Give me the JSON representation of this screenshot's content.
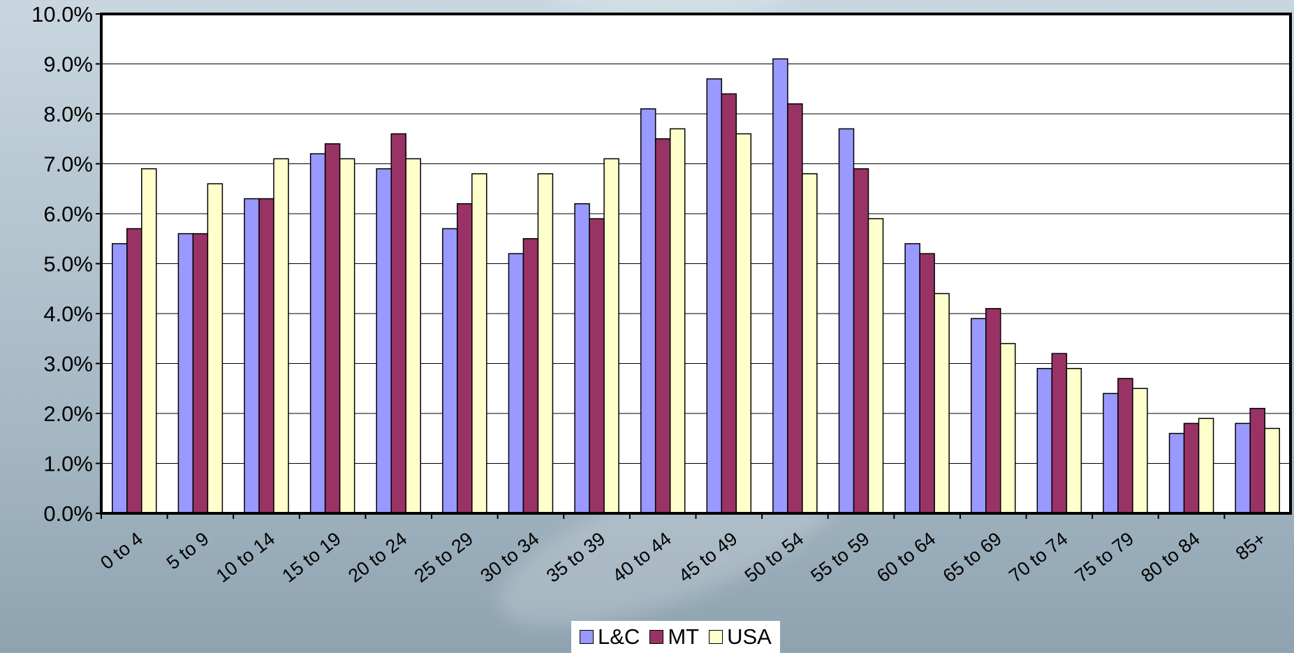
{
  "chart_data": {
    "type": "bar",
    "categories": [
      "0 to 4",
      "5 to 9",
      "10 to 14",
      "15 to 19",
      "20 to 24",
      "25 to 29",
      "30 to 34",
      "35 to 39",
      "40 to 44",
      "45 to 49",
      "50 to 54",
      "55 to 59",
      "60 to 64",
      "65 to 69",
      "70 to 74",
      "75 to 79",
      "80 to 84",
      "85+"
    ],
    "series": [
      {
        "name": "L&C",
        "color": "#9999ff",
        "values": [
          5.4,
          5.6,
          6.3,
          7.2,
          6.9,
          5.7,
          5.2,
          6.2,
          8.1,
          8.7,
          9.1,
          7.7,
          5.4,
          3.9,
          2.9,
          2.4,
          1.6,
          1.8
        ]
      },
      {
        "name": "MT",
        "color": "#993366",
        "values": [
          5.7,
          5.6,
          6.3,
          7.4,
          7.6,
          6.2,
          5.5,
          5.9,
          7.5,
          8.4,
          8.2,
          6.9,
          5.2,
          4.1,
          3.2,
          2.7,
          1.8,
          2.1
        ]
      },
      {
        "name": "USA",
        "color": "#ffffcc",
        "values": [
          6.9,
          6.6,
          7.1,
          7.1,
          7.1,
          6.8,
          6.8,
          7.1,
          7.7,
          7.6,
          6.8,
          5.9,
          4.4,
          3.4,
          2.9,
          2.5,
          1.9,
          1.7
        ]
      }
    ],
    "y_ticks": [
      "0.0%",
      "1.0%",
      "2.0%",
      "3.0%",
      "4.0%",
      "5.0%",
      "6.0%",
      "7.0%",
      "8.0%",
      "9.0%",
      "10.0%"
    ],
    "ylim": [
      0,
      10
    ],
    "grid": true,
    "legend_position": "bottom-center",
    "title": "",
    "xlabel": "",
    "ylabel": ""
  }
}
